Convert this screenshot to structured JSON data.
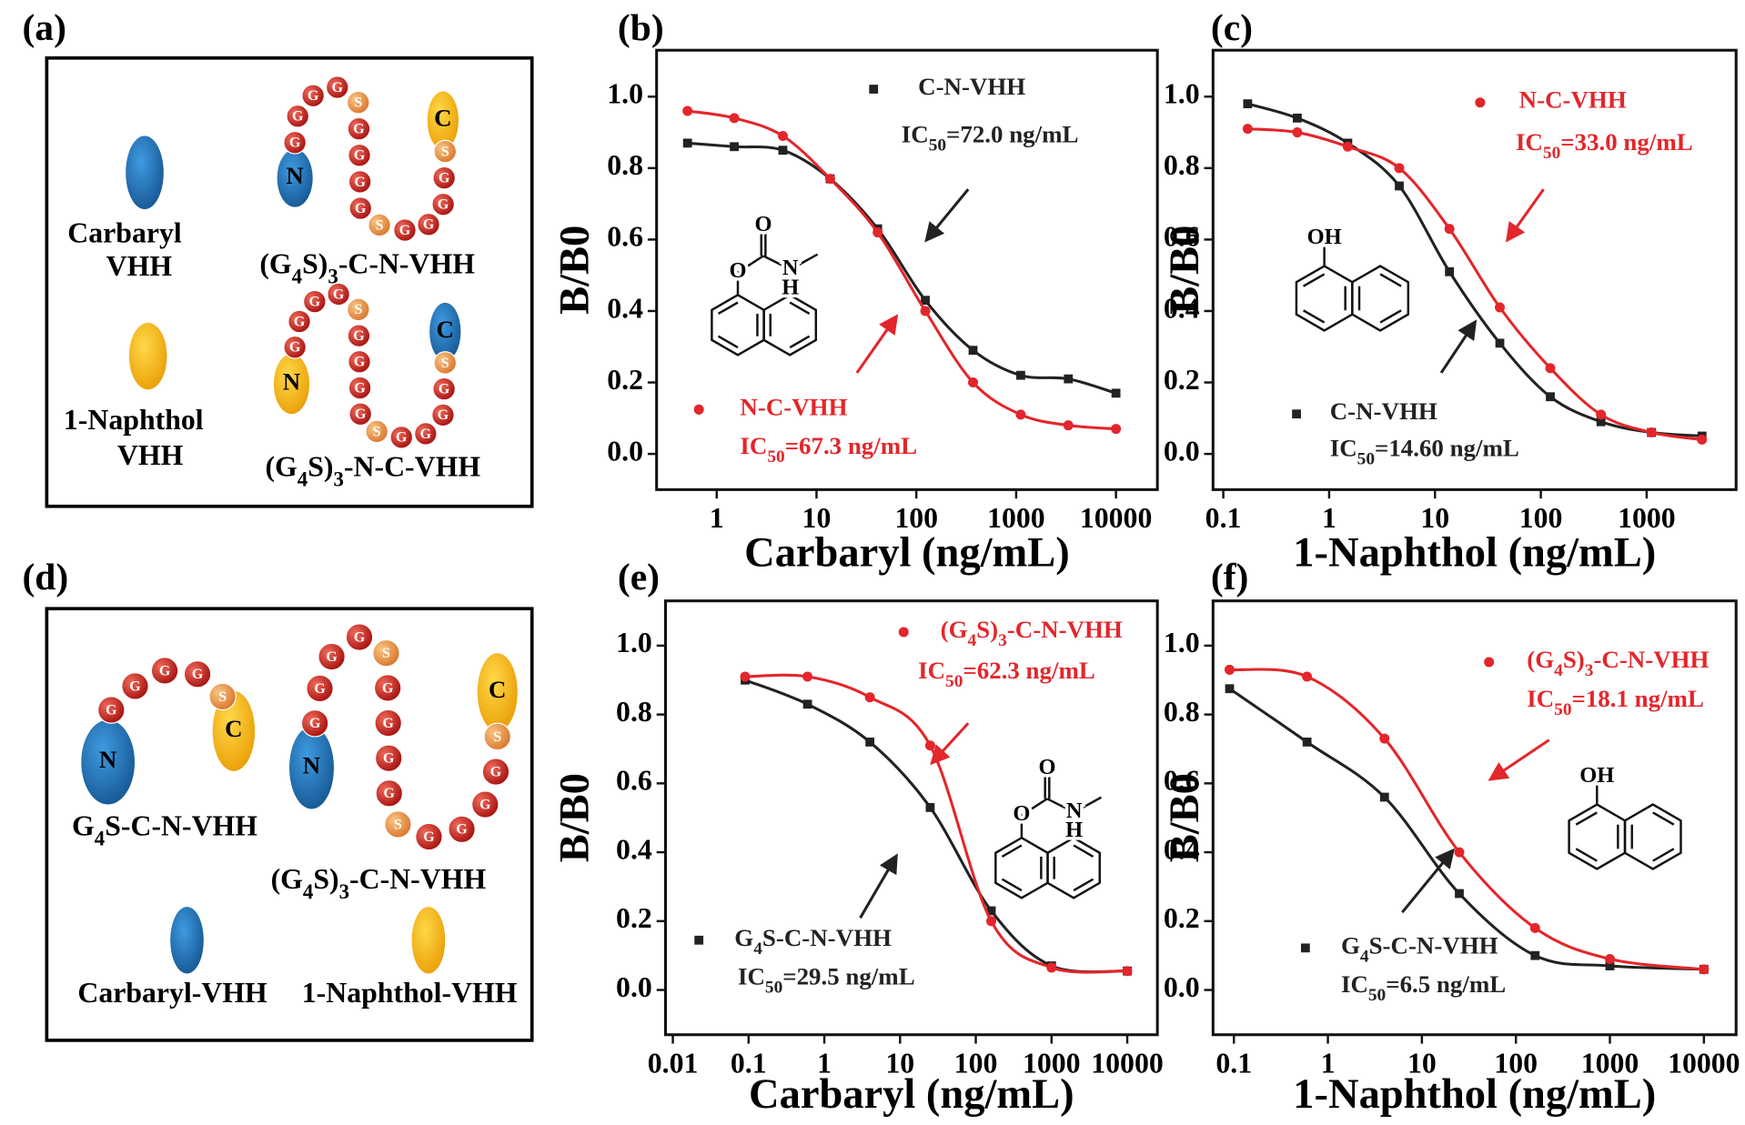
{
  "chart_data": [
    {
      "type": "line",
      "panel": "(b)",
      "xlabel": "Carbaryl (ng/mL)",
      "ylabel": "B/B0",
      "xscale": "log",
      "x": [
        0.51,
        1.5,
        4.6,
        13.7,
        41,
        123,
        370,
        1111,
        3333,
        10000
      ],
      "xlim": [
        0.25,
        26000
      ],
      "xticks": [
        1,
        10,
        100,
        1000,
        10000
      ],
      "ylim": [
        -0.1,
        1.13
      ],
      "yticks": [
        {
          "value": 0,
          "label": "0.0"
        },
        0.2,
        0.4,
        0.6,
        0.8,
        {
          "value": 1,
          "label": "1.0"
        }
      ],
      "structure": "carbaryl",
      "structure_atoms": [
        "O",
        "O",
        "N",
        "H"
      ],
      "series": [
        {
          "name": "C-N-VHH",
          "ic50_label": "IC50=72.0 ng/mL",
          "color": "#222222",
          "marker": "square",
          "values": [
            0.87,
            0.86,
            0.85,
            0.77,
            0.63,
            0.43,
            0.29,
            0.22,
            0.21,
            0.17
          ]
        },
        {
          "name": "N-C-VHH",
          "ic50_label": "IC50=67.3 ng/mL",
          "color": "#e3262b",
          "marker": "circle",
          "values": [
            0.96,
            0.94,
            0.89,
            0.77,
            0.62,
            0.4,
            0.2,
            0.11,
            0.08,
            0.07
          ]
        }
      ]
    },
    {
      "type": "line",
      "panel": "(c)",
      "xlabel": "1-Naphthol (ng/mL)",
      "ylabel": "B/B0",
      "xscale": "log",
      "x": [
        0.17,
        0.5,
        1.5,
        4.6,
        13.7,
        41,
        123,
        370,
        1111,
        3333
      ],
      "xlim": [
        0.08,
        7000
      ],
      "xticks": [
        0.1,
        1,
        10,
        100,
        1000
      ],
      "ylim": [
        -0.1,
        1.13
      ],
      "yticks": [
        {
          "value": 0,
          "label": "0.0"
        },
        0.2,
        0.4,
        0.6,
        0.8,
        {
          "value": 1,
          "label": "1.0"
        }
      ],
      "structure": "naphthol",
      "structure_atoms": [
        "OH"
      ],
      "series": [
        {
          "name": "C-N-VHH",
          "ic50_label": "IC50=14.60 ng/mL",
          "color": "#222222",
          "marker": "square",
          "values": [
            0.98,
            0.94,
            0.87,
            0.75,
            0.51,
            0.31,
            0.16,
            0.09,
            0.06,
            0.05
          ]
        },
        {
          "name": "N-C-VHH",
          "ic50_label": "IC50=33.0 ng/mL",
          "color": "#e3262b",
          "marker": "circle",
          "values": [
            0.91,
            0.9,
            0.86,
            0.8,
            0.63,
            0.41,
            0.24,
            0.11,
            0.06,
            0.04
          ]
        }
      ]
    },
    {
      "type": "line",
      "panel": "(e)",
      "xlabel": "Carbaryl (ng/mL)",
      "ylabel": "B/B0",
      "xscale": "log",
      "x": [
        0.09,
        0.6,
        4,
        25,
        160,
        1000,
        10000
      ],
      "xlim": [
        0.008,
        25000
      ],
      "xticks": [
        0.01,
        0.1,
        1,
        10,
        100,
        1000,
        10000
      ],
      "ylim": [
        -0.13,
        1.13
      ],
      "yticks": [
        {
          "value": 0,
          "label": "0.0"
        },
        0.2,
        0.4,
        0.6,
        0.8,
        {
          "value": 1,
          "label": "1.0"
        }
      ],
      "structure": "carbaryl",
      "structure_atoms": [
        "O",
        "O",
        "N",
        "H"
      ],
      "series": [
        {
          "name": "G4S-C-N-VHH",
          "ic50_label": "IC50=29.5 ng/mL",
          "color": "#222222",
          "marker": "square",
          "values": [
            0.9,
            0.83,
            0.72,
            0.53,
            0.23,
            0.07,
            0.055
          ]
        },
        {
          "name": "(G4S)3-C-N-VHH",
          "ic50_label": "IC50=62.3 ng/mL",
          "color": "#e3262b",
          "marker": "circle",
          "values": [
            0.91,
            0.91,
            0.85,
            0.71,
            0.2,
            0.065,
            0.055
          ]
        }
      ]
    },
    {
      "type": "line",
      "panel": "(f)",
      "xlabel": "1-Naphthol (ng/mL)",
      "ylabel": "B/B0",
      "xscale": "log",
      "x": [
        0.09,
        0.6,
        4,
        25,
        160,
        1000,
        10000
      ],
      "xlim": [
        0.06,
        22000
      ],
      "xticks": [
        0.1,
        1,
        10,
        100,
        1000,
        10000
      ],
      "ylim": [
        -0.13,
        1.13
      ],
      "yticks": [
        {
          "value": 0,
          "label": "0.0"
        },
        0.2,
        0.4,
        0.6,
        0.8,
        {
          "value": 1,
          "label": "1.0"
        }
      ],
      "structure": "naphthol",
      "structure_atoms": [
        "OH"
      ],
      "series": [
        {
          "name": "G4S-C-N-VHH",
          "ic50_label": "IC50=6.5 ng/mL",
          "color": "#222222",
          "marker": "square",
          "values": [
            0.875,
            0.72,
            0.56,
            0.28,
            0.1,
            0.07,
            0.06
          ]
        },
        {
          "name": "(G4S)3-C-N-VHH",
          "ic50_label": "IC50=18.1 ng/mL",
          "color": "#e3262b",
          "marker": "circle",
          "values": [
            0.93,
            0.91,
            0.73,
            0.4,
            0.18,
            0.09,
            0.06
          ]
        }
      ]
    }
  ],
  "diagrams": [
    {
      "panel": "(a)",
      "labels": [
        "Carbaryl",
        "VHH",
        "1-Naphthol",
        "VHH",
        "(G4S)3-C-N-VHH",
        "(G4S)3-N-C-VHH"
      ],
      "chains": [
        {
          "n": "N",
          "c": "C",
          "beads": [
            "G",
            "G",
            "G",
            "G",
            "S",
            "G",
            "G",
            "G",
            "G",
            "S",
            "G",
            "G",
            "G",
            "G",
            "S"
          ]
        },
        {
          "n": "N",
          "c": "C",
          "beads": [
            "G",
            "G",
            "G",
            "G",
            "S",
            "G",
            "G",
            "G",
            "G",
            "S",
            "G",
            "G",
            "G",
            "G",
            "S"
          ]
        }
      ]
    },
    {
      "panel": "(d)",
      "labels": [
        "G4S-C-N-VHH",
        "(G4S)3-C-N-VHH",
        "Carbaryl-VHH",
        "1-Naphthol-VHH"
      ],
      "chains": [
        {
          "n": "N",
          "c": "C",
          "beads": [
            "G",
            "G",
            "G",
            "G",
            "S"
          ]
        },
        {
          "n": "N",
          "c": "C",
          "beads": [
            "G",
            "G",
            "G",
            "G",
            "S",
            "G",
            "G",
            "G",
            "G",
            "S",
            "G",
            "G",
            "G",
            "G",
            "S"
          ]
        }
      ]
    }
  ]
}
